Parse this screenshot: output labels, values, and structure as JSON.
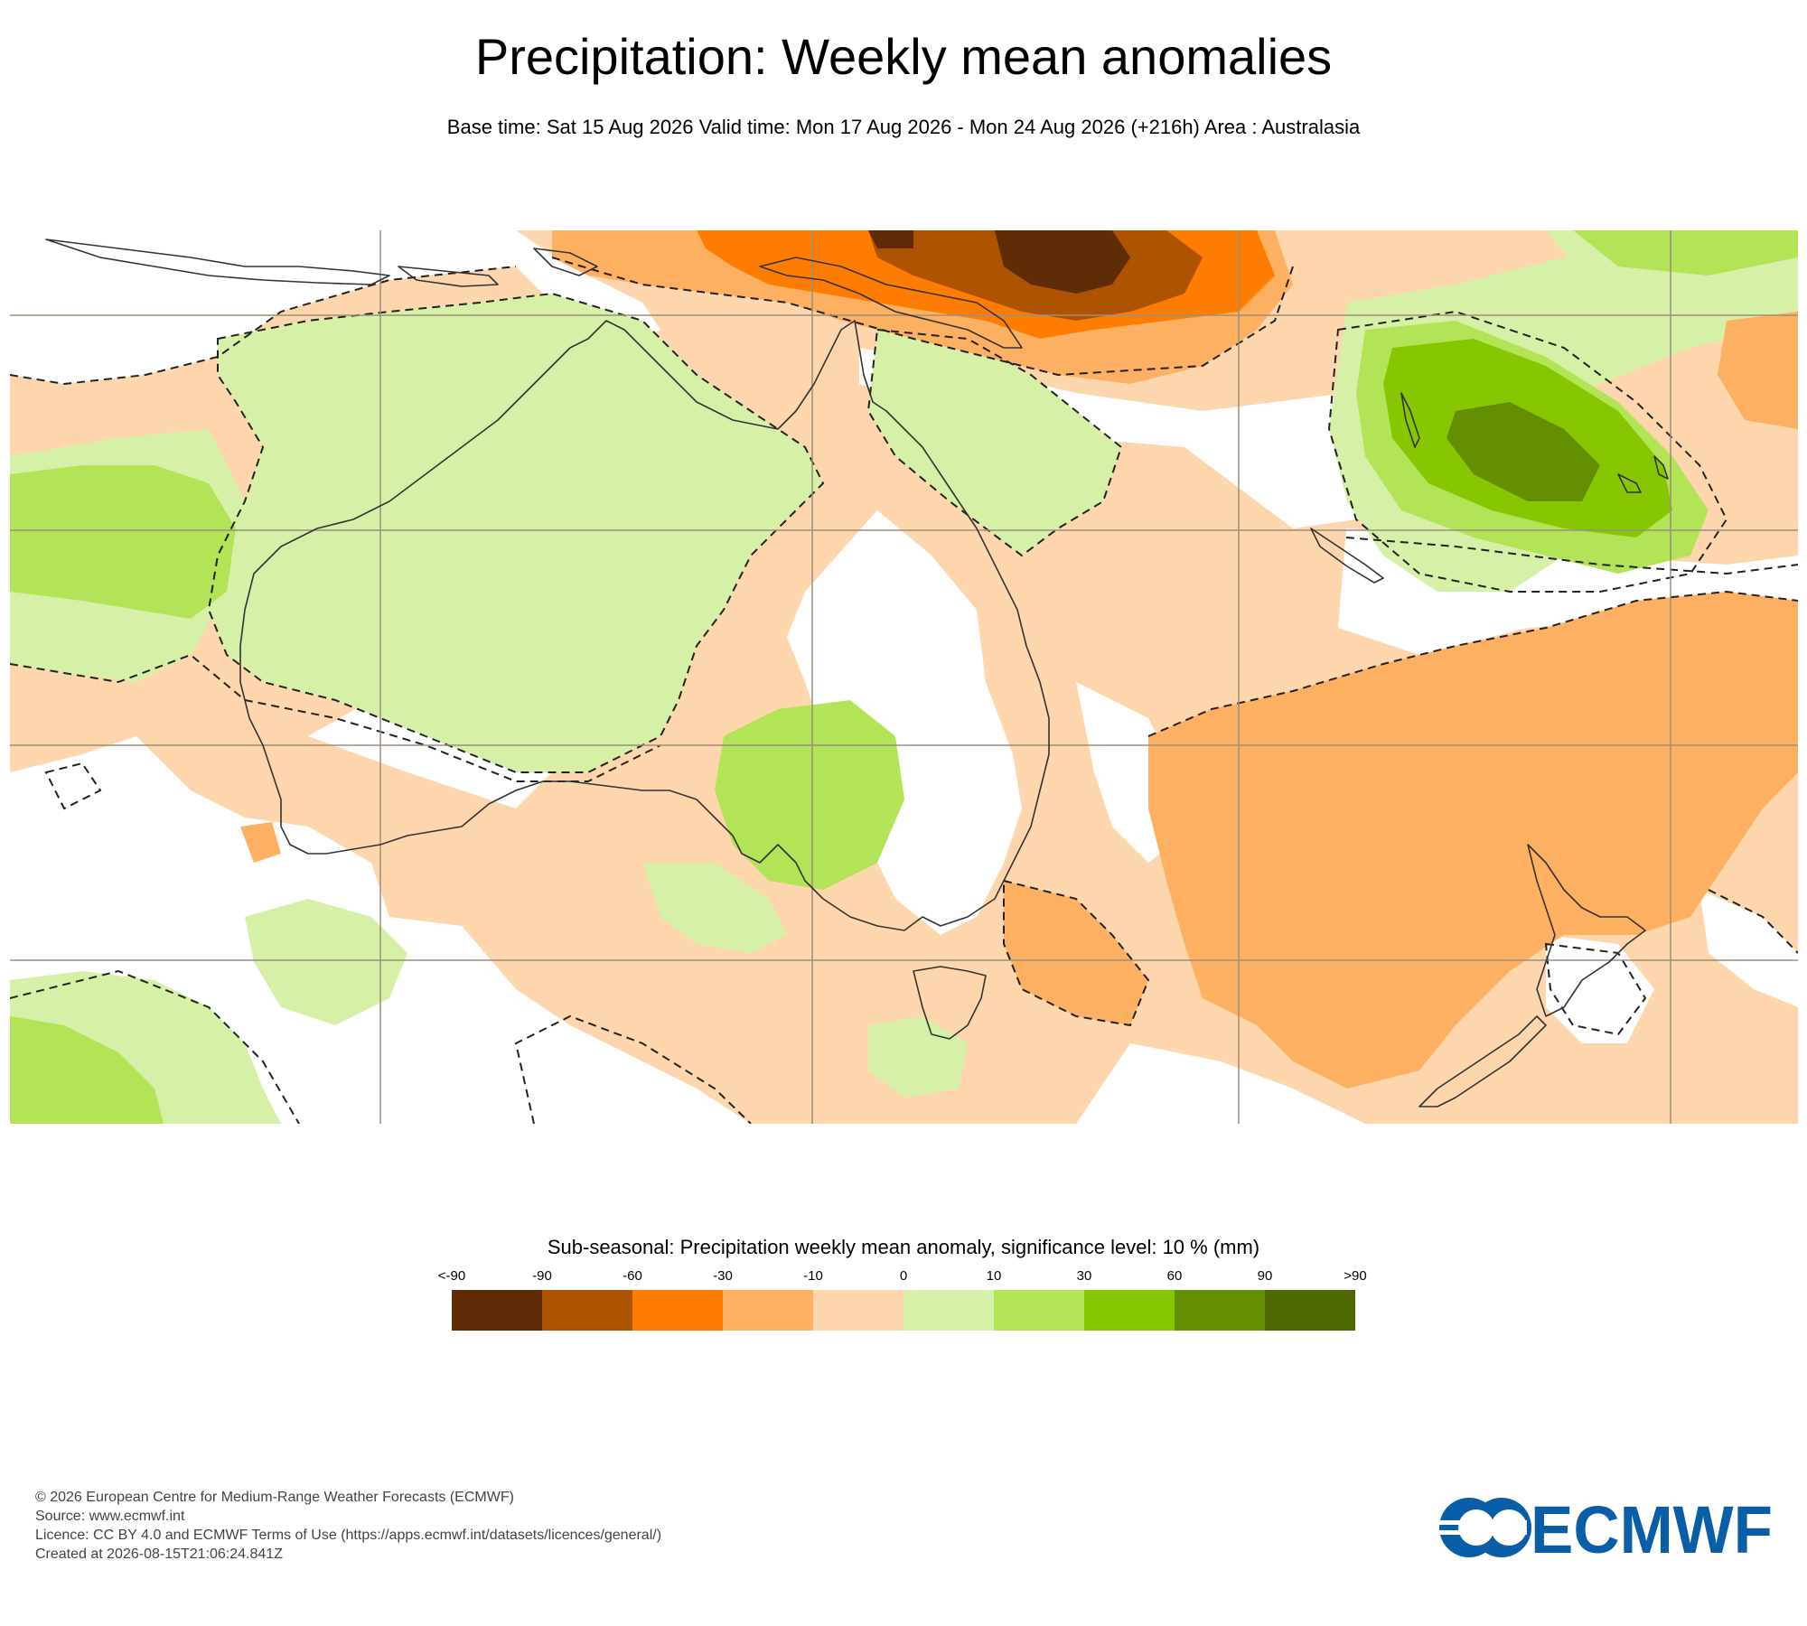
{
  "header": {
    "title": "Precipitation: Weekly mean anomalies",
    "subtitle": "Base time: Sat 15 Aug 2026 Valid time: Mon 17 Aug 2026 - Mon 24 Aug 2026 (+216h) Area : Australasia"
  },
  "legend": {
    "title": "Sub-seasonal: Precipitation weekly mean anomaly, significance level: 10 % (mm)",
    "ticks": [
      "<-90",
      "-90",
      "-60",
      "-30",
      "-10",
      "0",
      "10",
      "30",
      "60",
      "90",
      ">90"
    ],
    "colors": [
      "#5e2d07",
      "#ae5302",
      "#fe7d00",
      "#feb062",
      "#fed6ad",
      "#d7f0a8",
      "#b3e356",
      "#86c700",
      "#648f00",
      "#4e6a00"
    ]
  },
  "map": {
    "area": "Australasia",
    "palette": {
      "ocean_neutral": "#ffffff",
      "light_orange": "#fed6ad",
      "orange": "#feb062",
      "dark_orange": "#fe7d00",
      "brown": "#ae5302",
      "dark_brown": "#5e2d07",
      "light_green": "#d7f0a8",
      "green": "#b3e356",
      "bright_green": "#86c700",
      "dark_green": "#648f00",
      "grid": "#9a8f7a",
      "coast": "#333333"
    }
  },
  "footer": {
    "line1": "© 2026 European Centre for Medium-Range Weather Forecasts (ECMWF)",
    "line2": "Source: www.ecmwf.int",
    "line3": "Licence: CC BY 4.0 and ECMWF Terms of Use (https://apps.ecmwf.int/datasets/licences/general/)",
    "line4": "Created at 2026-08-15T21:06:24.841Z"
  },
  "logo": {
    "text": "ECMWF",
    "color": "#0a5ea7"
  }
}
